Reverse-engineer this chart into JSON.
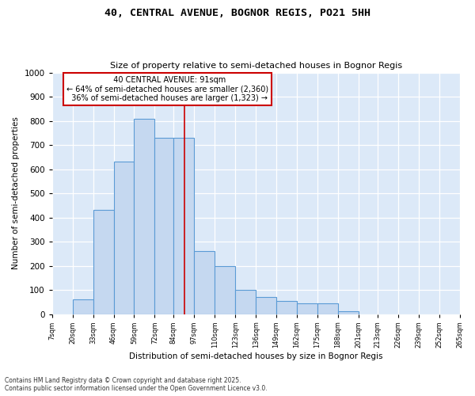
{
  "title_line1": "40, CENTRAL AVENUE, BOGNOR REGIS, PO21 5HH",
  "title_line2": "Size of property relative to semi-detached houses in Bognor Regis",
  "xlabel": "Distribution of semi-detached houses by size in Bognor Regis",
  "ylabel": "Number of semi-detached properties",
  "bin_edges": [
    7,
    20,
    33,
    46,
    59,
    72,
    84,
    97,
    110,
    123,
    136,
    149,
    162,
    175,
    188,
    201,
    213,
    226,
    239,
    252,
    265
  ],
  "bar_heights": [
    0,
    60,
    430,
    630,
    810,
    730,
    730,
    260,
    200,
    100,
    70,
    55,
    45,
    45,
    10,
    0,
    0,
    0,
    0,
    0
  ],
  "bar_color": "#c5d8f0",
  "bar_edge_color": "#5b9bd5",
  "property_size": 91,
  "property_label": "40 CENTRAL AVENUE: 91sqm",
  "pct_smaller": 64,
  "pct_larger": 36,
  "count_smaller": 2360,
  "count_larger": 1323,
  "vline_color": "#cc0000",
  "annotation_box_color": "#cc0000",
  "ylim": [
    0,
    1000
  ],
  "background_color": "#dce9f8",
  "plot_background": "#dce9f8",
  "footnote1": "Contains HM Land Registry data © Crown copyright and database right 2025.",
  "footnote2": "Contains public sector information licensed under the Open Government Licence v3.0."
}
